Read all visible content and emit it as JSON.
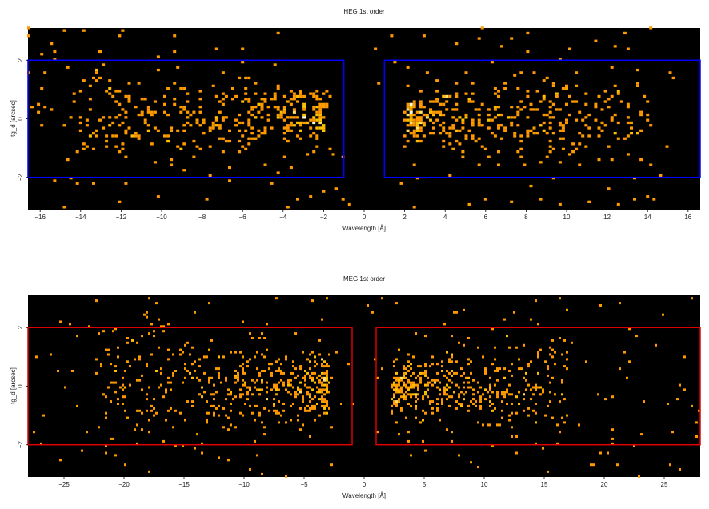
{
  "chart_data": [
    {
      "type": "heatmap",
      "title": "HEG 1st order",
      "xlabel": "Wavelength [Å]",
      "ylabel": "tg_d [arcsec]",
      "xlim": [
        -16.6,
        16.6
      ],
      "ylim": [
        -3.1,
        3.1
      ],
      "xticks": [
        -16,
        -14,
        -12,
        -10,
        -8,
        -6,
        -4,
        -2,
        0,
        2,
        4,
        6,
        8,
        10,
        12,
        14,
        16
      ],
      "xtick_labels": [
        "−16",
        "−14",
        "−12",
        "−10",
        "−8",
        "−6",
        "−4",
        "−2",
        "0",
        "2",
        "4",
        "6",
        "8",
        "10",
        "12",
        "14",
        "16"
      ],
      "yticks": [
        -2,
        0,
        2
      ],
      "ytick_labels": [
        "−2",
        "0",
        "2"
      ],
      "background": "#000000",
      "colormap": [
        "#b06000",
        "#ff9900",
        "#ffc000",
        "#ffe070",
        "#ffffe0"
      ],
      "region_color": "#0000ff",
      "regions": [
        {
          "x0": -16.6,
          "x1": -1.0,
          "y0": -2.0,
          "y1": 2.0
        },
        {
          "x0": 1.0,
          "x1": 16.6,
          "y0": -2.0,
          "y1": 2.0
        }
      ],
      "source_clusters": [
        {
          "xmin": -14.5,
          "xmax": -1.6,
          "peak": -2.0,
          "ywidth": 0.9,
          "weight": 1.0
        },
        {
          "xmin": 1.6,
          "xmax": 14.0,
          "peak": 2.2,
          "ywidth": 0.8,
          "weight": 1.0
        }
      ],
      "bin_size": [
        0.16,
        0.09
      ],
      "n_events": 900
    },
    {
      "type": "heatmap",
      "title": "MEG 1st order",
      "xlabel": "Wavelength [Å]",
      "ylabel": "tg_d [arcsec]",
      "xlim": [
        -28,
        28
      ],
      "ylim": [
        -3.1,
        3.1
      ],
      "xticks": [
        -25,
        -20,
        -15,
        -10,
        -5,
        0,
        5,
        10,
        15,
        20,
        25
      ],
      "xtick_labels": [
        "−25",
        "−20",
        "−15",
        "−10",
        "−5",
        "0",
        "5",
        "10",
        "15",
        "20",
        "25"
      ],
      "yticks": [
        -2,
        0,
        2
      ],
      "ytick_labels": [
        "−2",
        "0",
        "2"
      ],
      "background": "#000000",
      "colormap": [
        "#b06000",
        "#ff9900",
        "#ffc000",
        "#ffe070",
        "#ffffe0"
      ],
      "region_color": "#dd0000",
      "regions": [
        {
          "x0": -28,
          "x1": -1.0,
          "y0": -2.0,
          "y1": 2.0
        },
        {
          "x0": 1.0,
          "x1": 28,
          "y0": -2.0,
          "y1": 2.0
        }
      ],
      "source_clusters": [
        {
          "xmin": -22.0,
          "xmax": -1.6,
          "peak": -3.0,
          "ywidth": 1.0,
          "weight": 1.0
        },
        {
          "xmin": 1.6,
          "xmax": 17.0,
          "peak": 2.5,
          "ywidth": 0.9,
          "weight": 1.0
        }
      ],
      "bin_size": [
        0.2,
        0.08
      ],
      "n_events": 1100
    }
  ]
}
